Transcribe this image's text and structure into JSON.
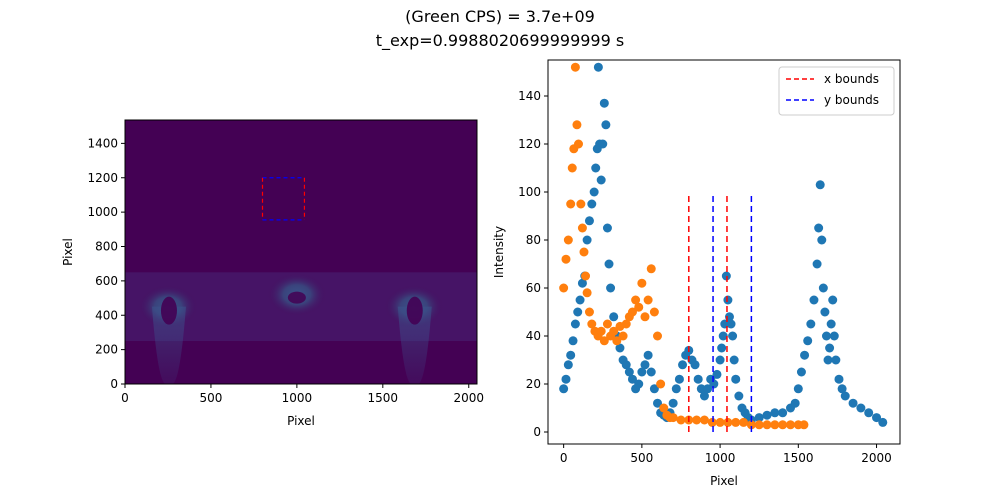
{
  "figure": {
    "title_line1": "(Green CPS) = 3.7e+09",
    "title_line2": "t_exp=0.9988020699999999 s"
  },
  "chart_data": [
    {
      "type": "heatmap",
      "xlabel": "Pixel",
      "ylabel": "Pixel",
      "xlim": [
        0,
        2048
      ],
      "ylim": [
        0,
        1536
      ],
      "xticks": [
        0,
        500,
        1000,
        1500,
        2000
      ],
      "yticks": [
        0,
        200,
        400,
        600,
        800,
        1000,
        1200,
        1400
      ],
      "colormap": "viridis",
      "background_color": "#440154",
      "roi": {
        "x_bounds": [
          800,
          1044
        ],
        "y_bounds": [
          955,
          1200
        ],
        "x_color": "#ff0000",
        "y_color": "#0000ff"
      },
      "features": [
        {
          "label": "left-glow",
          "x": 250,
          "y": 450
        },
        {
          "label": "center-glow",
          "x": 1000,
          "y": 520
        },
        {
          "label": "right-glow",
          "x": 1680,
          "y": 450
        }
      ]
    },
    {
      "type": "scatter",
      "xlabel": "Pixel",
      "ylabel": "Intensity",
      "xlim": [
        -100,
        2150
      ],
      "ylim": [
        -5,
        155
      ],
      "xticks": [
        0,
        500,
        1000,
        1500,
        2000
      ],
      "yticks": [
        0,
        20,
        40,
        60,
        80,
        100,
        120,
        140
      ],
      "legend_location": "upper right",
      "series": [
        {
          "color": "#1f77b4",
          "points": [
            [
              0,
              18
            ],
            [
              15,
              22
            ],
            [
              30,
              28
            ],
            [
              45,
              32
            ],
            [
              60,
              38
            ],
            [
              75,
              45
            ],
            [
              90,
              50
            ],
            [
              105,
              55
            ],
            [
              120,
              62
            ],
            [
              135,
              65
            ],
            [
              150,
              80
            ],
            [
              165,
              88
            ],
            [
              180,
              95
            ],
            [
              195,
              100
            ],
            [
              205,
              110
            ],
            [
              215,
              118
            ],
            [
              222,
              152
            ],
            [
              230,
              120
            ],
            [
              240,
              105
            ],
            [
              250,
              120
            ],
            [
              260,
              137
            ],
            [
              270,
              128
            ],
            [
              280,
              85
            ],
            [
              290,
              70
            ],
            [
              300,
              60
            ],
            [
              320,
              48
            ],
            [
              340,
              40
            ],
            [
              360,
              35
            ],
            [
              380,
              30
            ],
            [
              400,
              28
            ],
            [
              420,
              25
            ],
            [
              440,
              22
            ],
            [
              460,
              18
            ],
            [
              480,
              20
            ],
            [
              500,
              25
            ],
            [
              520,
              28
            ],
            [
              540,
              32
            ],
            [
              560,
              25
            ],
            [
              580,
              18
            ],
            [
              600,
              12
            ],
            [
              620,
              8
            ],
            [
              640,
              7
            ],
            [
              660,
              6
            ],
            [
              680,
              8
            ],
            [
              700,
              12
            ],
            [
              720,
              18
            ],
            [
              740,
              22
            ],
            [
              760,
              28
            ],
            [
              780,
              32
            ],
            [
              800,
              34
            ],
            [
              820,
              30
            ],
            [
              840,
              28
            ],
            [
              860,
              22
            ],
            [
              880,
              18
            ],
            [
              900,
              15
            ],
            [
              920,
              18
            ],
            [
              940,
              22
            ],
            [
              960,
              20
            ],
            [
              980,
              24
            ],
            [
              1000,
              30
            ],
            [
              1010,
              35
            ],
            [
              1020,
              40
            ],
            [
              1030,
              45
            ],
            [
              1040,
              65
            ],
            [
              1050,
              55
            ],
            [
              1060,
              48
            ],
            [
              1070,
              45
            ],
            [
              1080,
              40
            ],
            [
              1090,
              30
            ],
            [
              1100,
              22
            ],
            [
              1120,
              15
            ],
            [
              1140,
              10
            ],
            [
              1160,
              8
            ],
            [
              1180,
              6
            ],
            [
              1200,
              5
            ],
            [
              1250,
              6
            ],
            [
              1300,
              7
            ],
            [
              1350,
              8
            ],
            [
              1400,
              8
            ],
            [
              1450,
              10
            ],
            [
              1480,
              12
            ],
            [
              1500,
              18
            ],
            [
              1520,
              25
            ],
            [
              1540,
              32
            ],
            [
              1560,
              38
            ],
            [
              1580,
              45
            ],
            [
              1600,
              55
            ],
            [
              1620,
              70
            ],
            [
              1630,
              85
            ],
            [
              1640,
              103
            ],
            [
              1650,
              80
            ],
            [
              1660,
              60
            ],
            [
              1670,
              50
            ],
            [
              1680,
              40
            ],
            [
              1690,
              30
            ],
            [
              1700,
              35
            ],
            [
              1710,
              45
            ],
            [
              1720,
              55
            ],
            [
              1730,
              40
            ],
            [
              1740,
              30
            ],
            [
              1760,
              22
            ],
            [
              1780,
              18
            ],
            [
              1800,
              15
            ],
            [
              1850,
              12
            ],
            [
              1900,
              10
            ],
            [
              1950,
              8
            ],
            [
              2000,
              6
            ],
            [
              2040,
              4
            ]
          ]
        },
        {
          "color": "#ff7f0e",
          "points": [
            [
              0,
              60
            ],
            [
              15,
              72
            ],
            [
              30,
              80
            ],
            [
              45,
              95
            ],
            [
              55,
              110
            ],
            [
              65,
              118
            ],
            [
              75,
              152
            ],
            [
              85,
              128
            ],
            [
              95,
              120
            ],
            [
              110,
              95
            ],
            [
              120,
              85
            ],
            [
              130,
              75
            ],
            [
              140,
              65
            ],
            [
              150,
              58
            ],
            [
              165,
              50
            ],
            [
              180,
              45
            ],
            [
              200,
              42
            ],
            [
              220,
              40
            ],
            [
              240,
              42
            ],
            [
              260,
              38
            ],
            [
              280,
              45
            ],
            [
              300,
              40
            ],
            [
              320,
              42
            ],
            [
              340,
              38
            ],
            [
              360,
              44
            ],
            [
              380,
              40
            ],
            [
              400,
              45
            ],
            [
              420,
              48
            ],
            [
              440,
              50
            ],
            [
              460,
              55
            ],
            [
              480,
              52
            ],
            [
              500,
              62
            ],
            [
              520,
              48
            ],
            [
              540,
              55
            ],
            [
              560,
              68
            ],
            [
              580,
              50
            ],
            [
              600,
              40
            ],
            [
              620,
              20
            ],
            [
              640,
              10
            ],
            [
              660,
              7
            ],
            [
              680,
              6
            ],
            [
              700,
              6
            ],
            [
              750,
              5
            ],
            [
              800,
              5
            ],
            [
              850,
              5
            ],
            [
              900,
              5
            ],
            [
              950,
              4
            ],
            [
              1000,
              4
            ],
            [
              1050,
              4
            ],
            [
              1100,
              4
            ],
            [
              1150,
              4
            ],
            [
              1200,
              3
            ],
            [
              1250,
              3
            ],
            [
              1300,
              3
            ],
            [
              1350,
              3
            ],
            [
              1400,
              3
            ],
            [
              1450,
              3
            ],
            [
              1500,
              3
            ],
            [
              1536,
              3
            ]
          ]
        }
      ],
      "lines": [
        {
          "name": "x bounds",
          "color": "#ff0000",
          "x": [
            800,
            1044
          ],
          "y_range": [
            0,
            100
          ]
        },
        {
          "name": "y bounds",
          "color": "#0000ff",
          "x": [
            955,
            1200
          ],
          "y_range": [
            0,
            100
          ]
        }
      ]
    }
  ]
}
